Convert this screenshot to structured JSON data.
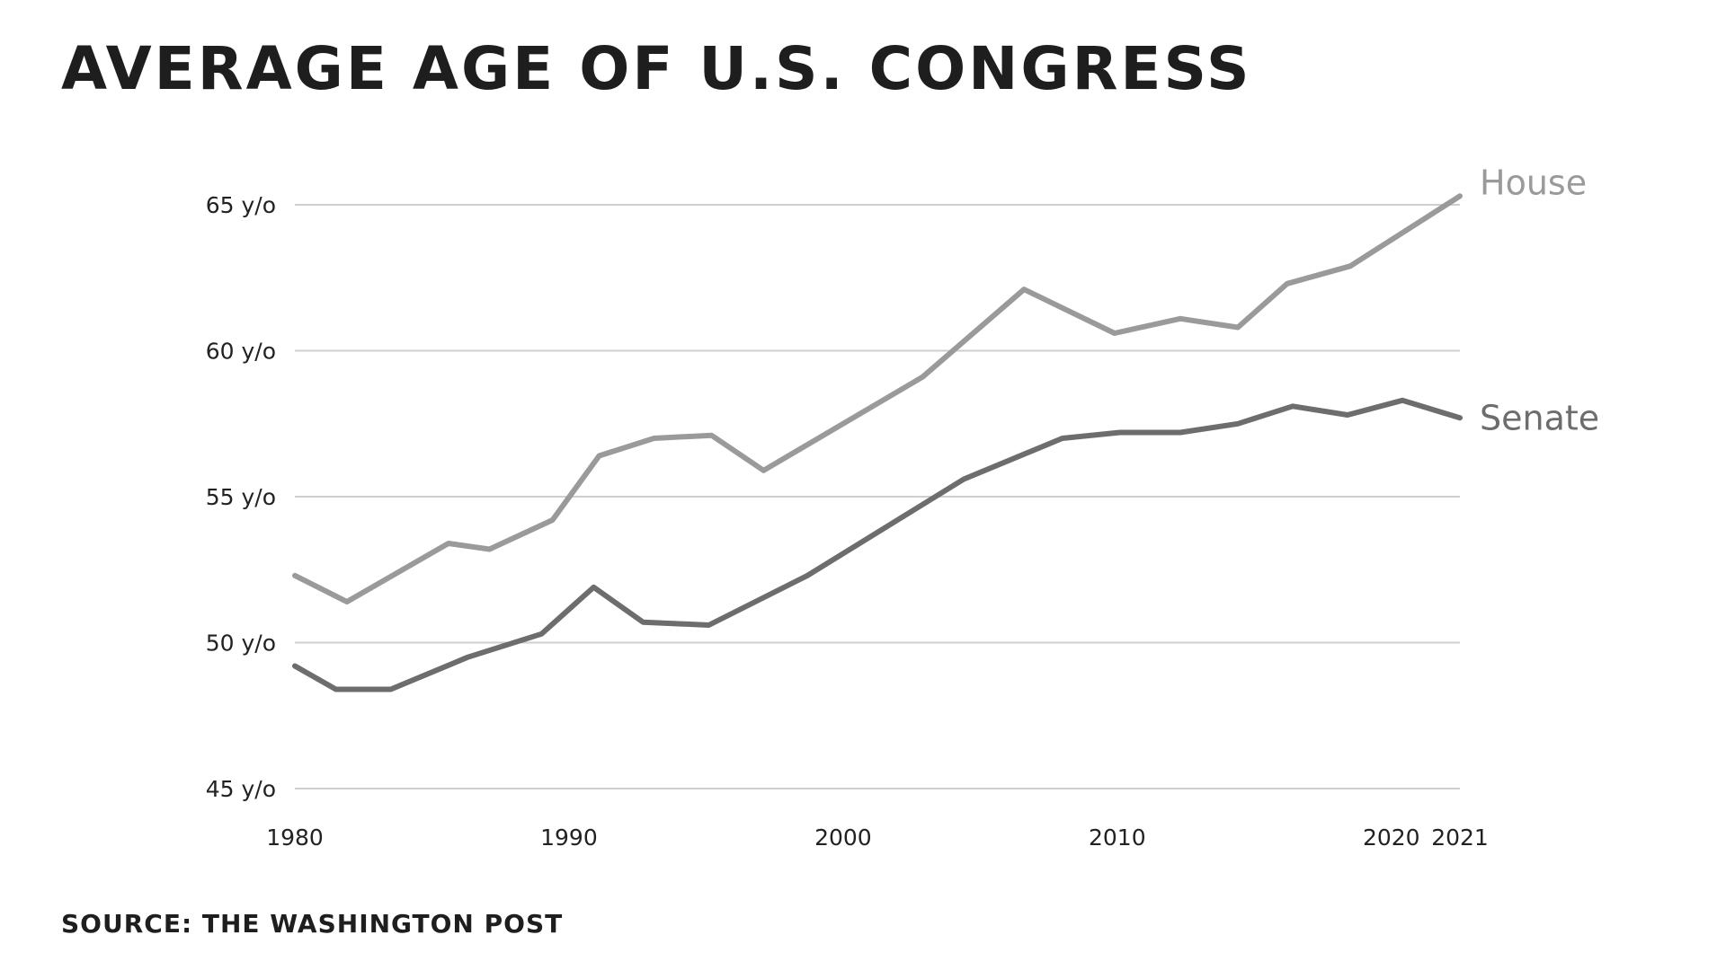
{
  "title": "Average age of U.S. Congress",
  "source": "Source: The Washington Post",
  "chart_data": {
    "type": "line",
    "title": "Average age of U.S. Congress",
    "xlabel": "",
    "ylabel": "",
    "xlim": [
      1980,
      2022.5
    ],
    "ylim": [
      45,
      65
    ],
    "x_ticks": [
      {
        "value": 1980,
        "label": "1980"
      },
      {
        "value": 1990,
        "label": "1990"
      },
      {
        "value": 2000,
        "label": "2000"
      },
      {
        "value": 2010,
        "label": "2010"
      },
      {
        "value": 2020,
        "label": "2020"
      },
      {
        "value": 2022.5,
        "label": "2021"
      }
    ],
    "y_ticks": [
      {
        "value": 45,
        "label": "45 y/o"
      },
      {
        "value": 50,
        "label": "50 y/o"
      },
      {
        "value": 55,
        "label": "55 y/o"
      },
      {
        "value": 60,
        "label": "60 y/o"
      },
      {
        "value": 65,
        "label": "65 y/o"
      }
    ],
    "grid": true,
    "legend": "end-of-line labels",
    "series": [
      {
        "name": "House",
        "color": "#9a9a9a",
        "points": [
          [
            1980,
            52.3
          ],
          [
            1981.9,
            51.4
          ],
          [
            1985.6,
            53.4
          ],
          [
            1987.1,
            53.2
          ],
          [
            1989.4,
            54.2
          ],
          [
            1991.1,
            56.4
          ],
          [
            1993.1,
            57.0
          ],
          [
            1995.2,
            57.1
          ],
          [
            1997.1,
            55.9
          ],
          [
            2002.9,
            59.1
          ],
          [
            2006.6,
            62.1
          ],
          [
            2009.9,
            60.6
          ],
          [
            2012.3,
            61.1
          ],
          [
            2014.4,
            60.8
          ],
          [
            2016.2,
            62.3
          ],
          [
            2018.5,
            62.9
          ],
          [
            2022.5,
            65.3
          ]
        ]
      },
      {
        "name": "Senate",
        "color": "#6d6d6d",
        "points": [
          [
            1980,
            49.2
          ],
          [
            1981.5,
            48.4
          ],
          [
            1983.5,
            48.4
          ],
          [
            1986.3,
            49.5
          ],
          [
            1989.0,
            50.3
          ],
          [
            1990.9,
            51.9
          ],
          [
            1992.7,
            50.7
          ],
          [
            1995.1,
            50.6
          ],
          [
            1998.7,
            52.3
          ],
          [
            2004.4,
            55.6
          ],
          [
            2008.0,
            57.0
          ],
          [
            2010.1,
            57.2
          ],
          [
            2012.3,
            57.2
          ],
          [
            2014.4,
            57.5
          ],
          [
            2016.4,
            58.1
          ],
          [
            2018.4,
            57.8
          ],
          [
            2020.4,
            58.3
          ],
          [
            2022.5,
            57.7
          ]
        ]
      }
    ]
  }
}
